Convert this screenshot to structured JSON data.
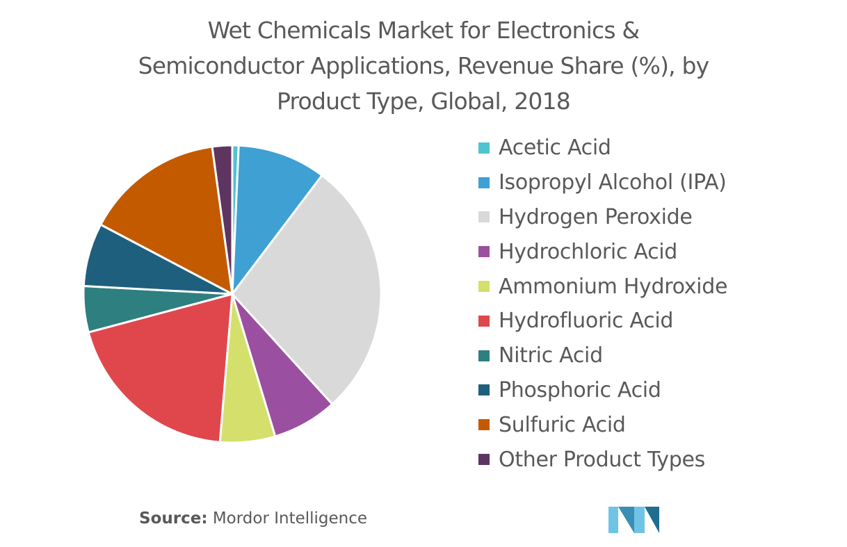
{
  "chart_data": {
    "type": "pie",
    "title": "Wet Chemicals Market for Electronics &\nSemiconductor Applications, Revenue Share (%), by\nProduct Type, Global, 2018",
    "legend_position": "right",
    "slices": [
      {
        "label": "Acetic Acid",
        "value": 0.7,
        "color": "#4fc3d1"
      },
      {
        "label": "Isopropyl Alcohol (IPA)",
        "value": 9.8,
        "color": "#3fa0d4"
      },
      {
        "label": "Hydrogen Peroxide",
        "value": 28.5,
        "color": "#d9d9d9"
      },
      {
        "label": "Hydrochloric Acid",
        "value": 7.2,
        "color": "#9b4fa0"
      },
      {
        "label": "Ammonium Hydroxide",
        "value": 6.1,
        "color": "#d4e06b"
      },
      {
        "label": "Hydrofluoric Acid",
        "value": 19.9,
        "color": "#e0474c"
      },
      {
        "label": "Nitric Acid",
        "value": 5.1,
        "color": "#2e7f7f"
      },
      {
        "label": "Phosphoric Acid",
        "value": 7.0,
        "color": "#1e5f7e"
      },
      {
        "label": "Sulfuric Acid",
        "value": 15.4,
        "color": "#c45a00"
      },
      {
        "label": "Other Product Types",
        "value": 2.2,
        "color": "#5e3460"
      }
    ]
  },
  "source": {
    "key": "Source:",
    "value": " Mordor Intelligence"
  },
  "logo": {
    "icon": "mordor-intelligence-logo",
    "colors": [
      "#6fc4e6",
      "#3a8fb6",
      "#1f6d8f"
    ]
  }
}
